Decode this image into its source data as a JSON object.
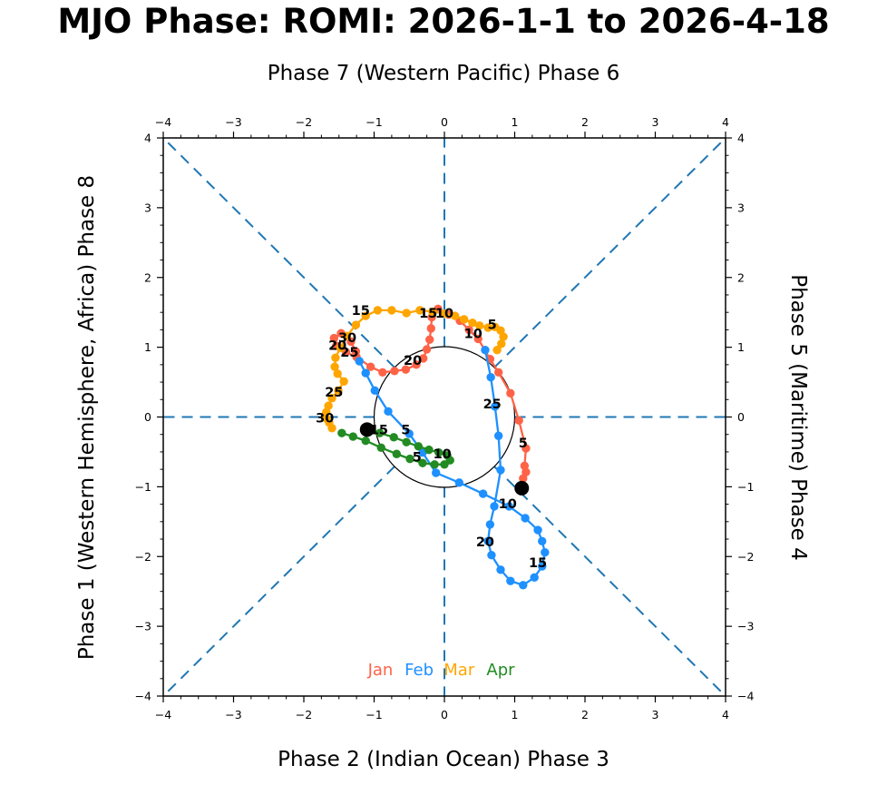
{
  "chart_data": {
    "type": "line",
    "title": "MJO Phase: ROMI: 2026-1-1 to 2026-4-18",
    "axis_titles": {
      "top": "Phase 7 (Western Pacific) Phase 6",
      "bottom": "Phase 2 (Indian Ocean) Phase 3",
      "left": "Phase 1 (Western Hemisphere, Africa) Phase 8",
      "right": "Phase 5 (Maritime) Phase 4"
    },
    "xlim": [
      -4,
      4
    ],
    "ylim": [
      -4,
      4
    ],
    "major_ticks": [
      -4,
      -3,
      -2,
      -1,
      0,
      1,
      2,
      3,
      4
    ],
    "minor_tick_step": 0.25,
    "grid": false,
    "unit_circle_radius": 1,
    "phase_line_color": "#1f77b4",
    "marker_color": "#000000",
    "series": [
      {
        "name": "Jan",
        "color": "#ff6347",
        "points": [
          [
            1.1,
            -1.02
          ],
          [
            1.12,
            -0.88
          ],
          [
            1.16,
            -0.79
          ],
          [
            1.14,
            -0.7
          ],
          [
            1.16,
            -0.45
          ],
          [
            1.06,
            -0.05
          ],
          [
            0.94,
            0.34
          ],
          [
            0.77,
            0.64
          ],
          [
            0.65,
            0.83
          ],
          [
            0.48,
            1.12
          ],
          [
            0.35,
            1.25
          ],
          [
            0.22,
            1.38
          ],
          [
            0.06,
            1.47
          ],
          [
            -0.09,
            1.55
          ],
          [
            -0.18,
            1.43
          ],
          [
            -0.19,
            1.27
          ],
          [
            -0.21,
            1.11
          ],
          [
            -0.25,
            0.97
          ],
          [
            -0.3,
            0.84
          ],
          [
            -0.4,
            0.75
          ],
          [
            -0.55,
            0.68
          ],
          [
            -0.71,
            0.66
          ],
          [
            -0.88,
            0.64
          ],
          [
            -1.05,
            0.72
          ],
          [
            -1.25,
            0.86
          ],
          [
            -1.4,
            0.93
          ],
          [
            -1.54,
            1.02
          ],
          [
            -1.57,
            1.13
          ],
          [
            -1.47,
            1.2
          ],
          [
            -1.33,
            1.08
          ],
          [
            -1.26,
            0.94
          ]
        ],
        "day_labels": [
          {
            "day": "5",
            "x": 1.12,
            "y": -0.37
          },
          {
            "day": "10",
            "x": 0.41,
            "y": 1.2
          },
          {
            "day": "15",
            "x": -0.23,
            "y": 1.49
          },
          {
            "day": "20",
            "x": -0.45,
            "y": 0.81
          },
          {
            "day": "25",
            "x": -1.35,
            "y": 0.93
          },
          {
            "day": "30",
            "x": -1.38,
            "y": 1.14
          }
        ]
      },
      {
        "name": "Feb",
        "color": "#1e90ff",
        "points": [
          [
            -1.21,
            0.8
          ],
          [
            -1.12,
            0.63
          ],
          [
            -0.99,
            0.38
          ],
          [
            -0.8,
            0.08
          ],
          [
            -0.5,
            -0.24
          ],
          [
            -0.31,
            -0.51
          ],
          [
            -0.12,
            -0.8
          ],
          [
            0.21,
            -0.94
          ],
          [
            0.55,
            -1.1
          ],
          [
            0.92,
            -1.28
          ],
          [
            1.15,
            -1.45
          ],
          [
            1.33,
            -1.62
          ],
          [
            1.39,
            -1.78
          ],
          [
            1.43,
            -1.94
          ],
          [
            1.39,
            -2.14
          ],
          [
            1.28,
            -2.3
          ],
          [
            1.12,
            -2.41
          ],
          [
            0.94,
            -2.35
          ],
          [
            0.8,
            -2.19
          ],
          [
            0.67,
            -1.98
          ],
          [
            0.62,
            -1.78
          ],
          [
            0.65,
            -1.54
          ],
          [
            0.71,
            -1.28
          ],
          [
            0.8,
            -0.76
          ],
          [
            0.77,
            -0.27
          ],
          [
            0.72,
            0.15
          ],
          [
            0.66,
            0.57
          ],
          [
            0.58,
            0.96
          ]
        ],
        "day_labels": [
          {
            "day": "5",
            "x": -0.55,
            "y": -0.18
          },
          {
            "day": "10",
            "x": 0.9,
            "y": -1.24
          },
          {
            "day": "15",
            "x": 1.33,
            "y": -2.09
          },
          {
            "day": "20",
            "x": 0.58,
            "y": -1.79
          },
          {
            "day": "25",
            "x": 0.68,
            "y": 0.19
          }
        ]
      },
      {
        "name": "Mar",
        "color": "#ffa500",
        "points": [
          [
            0.75,
            0.96
          ],
          [
            0.81,
            1.05
          ],
          [
            0.84,
            1.15
          ],
          [
            0.8,
            1.24
          ],
          [
            0.72,
            1.29
          ],
          [
            0.62,
            1.28
          ],
          [
            0.5,
            1.31
          ],
          [
            0.4,
            1.35
          ],
          [
            0.28,
            1.4
          ],
          [
            0.15,
            1.45
          ],
          [
            0.0,
            1.48
          ],
          [
            -0.17,
            1.51
          ],
          [
            -0.35,
            1.53
          ],
          [
            -0.54,
            1.49
          ],
          [
            -0.75,
            1.53
          ],
          [
            -0.95,
            1.53
          ],
          [
            -1.12,
            1.45
          ],
          [
            -1.26,
            1.32
          ],
          [
            -1.39,
            1.16
          ],
          [
            -1.48,
            0.99
          ],
          [
            -1.55,
            0.85
          ],
          [
            -1.56,
            0.72
          ],
          [
            -1.52,
            0.62
          ],
          [
            -1.43,
            0.51
          ],
          [
            -1.51,
            0.38
          ],
          [
            -1.6,
            0.27
          ],
          [
            -1.65,
            0.16
          ],
          [
            -1.68,
            0.07
          ],
          [
            -1.68,
            -0.02
          ],
          [
            -1.64,
            -0.08
          ],
          [
            -1.6,
            -0.16
          ]
        ],
        "day_labels": [
          {
            "day": "5",
            "x": 0.68,
            "y": 1.33
          },
          {
            "day": "10",
            "x": 0.0,
            "y": 1.49
          },
          {
            "day": "15",
            "x": -1.19,
            "y": 1.53
          },
          {
            "day": "20",
            "x": -1.52,
            "y": 1.03
          },
          {
            "day": "25",
            "x": -1.57,
            "y": 0.36
          },
          {
            "day": "30",
            "x": -1.7,
            "y": -0.01
          }
        ]
      },
      {
        "name": "Apr",
        "color": "#228b22",
        "points": [
          [
            -1.46,
            -0.23
          ],
          [
            -1.3,
            -0.28
          ],
          [
            -1.12,
            -0.34
          ],
          [
            -0.9,
            -0.44
          ],
          [
            -0.68,
            -0.53
          ],
          [
            -0.49,
            -0.6
          ],
          [
            -0.31,
            -0.66
          ],
          [
            -0.14,
            -0.68
          ],
          [
            0.0,
            -0.68
          ],
          [
            0.08,
            -0.62
          ],
          [
            0.04,
            -0.55
          ],
          [
            -0.08,
            -0.51
          ],
          [
            -0.22,
            -0.47
          ],
          [
            -0.37,
            -0.42
          ],
          [
            -0.54,
            -0.36
          ],
          [
            -0.72,
            -0.29
          ],
          [
            -0.92,
            -0.23
          ],
          [
            -1.1,
            -0.18
          ]
        ],
        "day_labels": [
          {
            "day": "5",
            "x": -0.39,
            "y": -0.57
          },
          {
            "day": "10",
            "x": -0.03,
            "y": -0.53
          },
          {
            "day": "15",
            "x": -0.93,
            "y": -0.18
          }
        ]
      }
    ],
    "markers": {
      "start": {
        "x": 1.1,
        "y": -1.02
      },
      "end": {
        "x": -1.1,
        "y": -0.18
      }
    },
    "legend": {
      "y": -3.62,
      "entries": [
        {
          "label": "Jan",
          "color": "#ff6347",
          "x": -0.91
        },
        {
          "label": "Feb",
          "color": "#1e90ff",
          "x": -0.36
        },
        {
          "label": "Mar",
          "color": "#ffa500",
          "x": 0.21
        },
        {
          "label": "Apr",
          "color": "#228b22",
          "x": 0.8
        }
      ]
    }
  }
}
